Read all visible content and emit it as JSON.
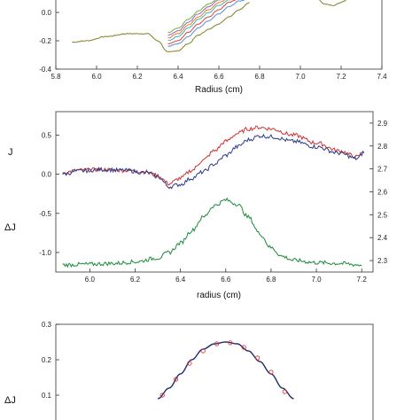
{
  "chart_data": [
    {
      "type": "line",
      "title": "",
      "xlabel": "Radius (cm)",
      "ylabel": "",
      "xlim": [
        5.8,
        7.4
      ],
      "ylim": [
        -0.4,
        0.1
      ],
      "x_ticks": [
        "5.8",
        "6.0",
        "6.2",
        "6.4",
        "6.6",
        "6.8",
        "7.0",
        "7.2",
        "7.4"
      ],
      "y_ticks": [
        "-0.4",
        "-0.2",
        "0.0"
      ],
      "grid": false,
      "series": [
        {
          "color": "#808020",
          "x": [
            5.88,
            5.95,
            6.05,
            6.15,
            6.25,
            6.3,
            6.35,
            6.4,
            6.45,
            6.5,
            6.55,
            6.6,
            6.65,
            6.7,
            6.75
          ],
          "y": [
            -0.21,
            -0.2,
            -0.17,
            -0.15,
            -0.15,
            -0.2,
            -0.28,
            -0.27,
            -0.22,
            -0.16,
            -0.12,
            -0.08,
            -0.03,
            0.02,
            0.07
          ]
        },
        {
          "color": "#5a8fd0",
          "x": [
            6.35,
            6.4,
            6.45,
            6.5,
            6.55,
            6.6,
            6.65,
            6.7,
            6.75
          ],
          "y": [
            -0.24,
            -0.22,
            -0.17,
            -0.11,
            -0.06,
            -0.01,
            0.04,
            0.08,
            0.1
          ]
        },
        {
          "color": "#e04040",
          "x": [
            6.35,
            6.4,
            6.45,
            6.5,
            6.55,
            6.6,
            6.65,
            6.7,
            6.75
          ],
          "y": [
            -0.22,
            -0.2,
            -0.14,
            -0.08,
            -0.03,
            0.02,
            0.07,
            0.1,
            0.1
          ]
        },
        {
          "color": "#40b0b0",
          "x": [
            6.35,
            6.4,
            6.45,
            6.5,
            6.55,
            6.6,
            6.65,
            6.7,
            6.75
          ],
          "y": [
            -0.2,
            -0.17,
            -0.11,
            -0.05,
            0.0,
            0.05,
            0.09,
            0.1,
            0.1
          ]
        },
        {
          "color": "#e08020",
          "x": [
            6.35,
            6.4,
            6.45,
            6.5,
            6.55,
            6.6,
            6.65,
            6.7,
            6.75
          ],
          "y": [
            -0.18,
            -0.15,
            -0.09,
            -0.03,
            0.02,
            0.07,
            0.1,
            0.1,
            0.1
          ]
        },
        {
          "color": "#a060c0",
          "x": [
            6.35,
            6.4,
            6.45,
            6.5,
            6.55,
            6.6,
            6.65,
            6.7,
            6.75
          ],
          "y": [
            -0.16,
            -0.13,
            -0.07,
            -0.01,
            0.04,
            0.09,
            0.1,
            0.1,
            0.1
          ]
        },
        {
          "color": "#70b040",
          "x": [
            6.35,
            6.4,
            6.45,
            6.5,
            6.55,
            6.6,
            6.65,
            6.7,
            6.75
          ],
          "y": [
            -0.14,
            -0.11,
            -0.05,
            0.01,
            0.06,
            0.1,
            0.1,
            0.1,
            0.1
          ]
        },
        {
          "color": "#808020",
          "x": [
            7.08,
            7.12,
            7.16,
            7.2,
            7.24
          ],
          "y": [
            0.1,
            0.06,
            0.05,
            0.07,
            0.1
          ]
        }
      ]
    },
    {
      "type": "line",
      "title": "",
      "xlabel": "radius (cm)",
      "ylabel_left": [
        "J",
        "ΔJ"
      ],
      "xlim": [
        5.85,
        7.25
      ],
      "ylim_left": [
        -1.25,
        0.8
      ],
      "ylim_right": [
        2.25,
        2.95
      ],
      "x_ticks": [
        "6.0",
        "6.2",
        "6.4",
        "6.6",
        "6.8",
        "7.0",
        "7.2"
      ],
      "y_ticks_left": [
        "0.5",
        "0.0",
        "-0.5",
        "-1.0"
      ],
      "y_ticks_right": [
        "2.9",
        "2.8",
        "2.7",
        "2.6",
        "2.5",
        "2.4",
        "2.3"
      ],
      "grid": false,
      "series": [
        {
          "color": "#d03030",
          "x": [
            5.88,
            5.95,
            6.05,
            6.15,
            6.25,
            6.3,
            6.35,
            6.4,
            6.45,
            6.5,
            6.55,
            6.6,
            6.65,
            6.7,
            6.75,
            6.8,
            6.9,
            7.0,
            7.1,
            7.18,
            7.21
          ],
          "y": [
            0.02,
            0.05,
            0.06,
            0.05,
            0.03,
            -0.02,
            -0.12,
            -0.05,
            0.05,
            0.18,
            0.3,
            0.42,
            0.52,
            0.58,
            0.6,
            0.58,
            0.5,
            0.4,
            0.3,
            0.22,
            0.3
          ]
        },
        {
          "color": "#2a3a8a",
          "x": [
            5.88,
            5.95,
            6.05,
            6.15,
            6.25,
            6.3,
            6.35,
            6.4,
            6.45,
            6.5,
            6.55,
            6.6,
            6.65,
            6.7,
            6.75,
            6.8,
            6.9,
            7.0,
            7.1,
            7.18,
            7.21
          ],
          "y": [
            0.0,
            0.04,
            0.06,
            0.05,
            0.02,
            -0.03,
            -0.16,
            -0.13,
            -0.05,
            0.03,
            0.13,
            0.24,
            0.35,
            0.44,
            0.49,
            0.48,
            0.42,
            0.35,
            0.27,
            0.2,
            0.28
          ]
        },
        {
          "color": "#1a8a3a",
          "x": [
            5.88,
            6.0,
            6.1,
            6.2,
            6.3,
            6.35,
            6.4,
            6.45,
            6.5,
            6.55,
            6.6,
            6.65,
            6.7,
            6.75,
            6.8,
            6.85,
            6.9,
            7.0,
            7.1,
            7.2
          ],
          "y": [
            -1.16,
            -1.15,
            -1.14,
            -1.12,
            -1.07,
            -1.0,
            -0.88,
            -0.72,
            -0.55,
            -0.4,
            -0.33,
            -0.38,
            -0.55,
            -0.76,
            -0.94,
            -1.05,
            -1.1,
            -1.13,
            -1.14,
            -1.16
          ]
        }
      ]
    },
    {
      "type": "line",
      "title": "",
      "xlabel": "",
      "ylabel": "ΔJ",
      "xlim": [
        5.85,
        7.25
      ],
      "ylim": [
        0.0,
        0.3
      ],
      "y_ticks": [
        "0.3",
        "0.2",
        "0.1"
      ],
      "grid": false,
      "series": [
        {
          "color": "#1e2a6e",
          "x": [
            6.3,
            6.35,
            6.4,
            6.45,
            6.5,
            6.55,
            6.6,
            6.65,
            6.7,
            6.75,
            6.8,
            6.85,
            6.9
          ],
          "y": [
            0.09,
            0.12,
            0.16,
            0.2,
            0.23,
            0.245,
            0.25,
            0.245,
            0.225,
            0.195,
            0.16,
            0.12,
            0.09
          ]
        },
        {
          "color": "#d03030",
          "style": "markers",
          "x": [
            6.32,
            6.38,
            6.44,
            6.5,
            6.56,
            6.62,
            6.68,
            6.74,
            6.8,
            6.86
          ],
          "y": [
            0.1,
            0.145,
            0.19,
            0.225,
            0.245,
            0.248,
            0.235,
            0.205,
            0.165,
            0.11
          ]
        }
      ]
    }
  ]
}
